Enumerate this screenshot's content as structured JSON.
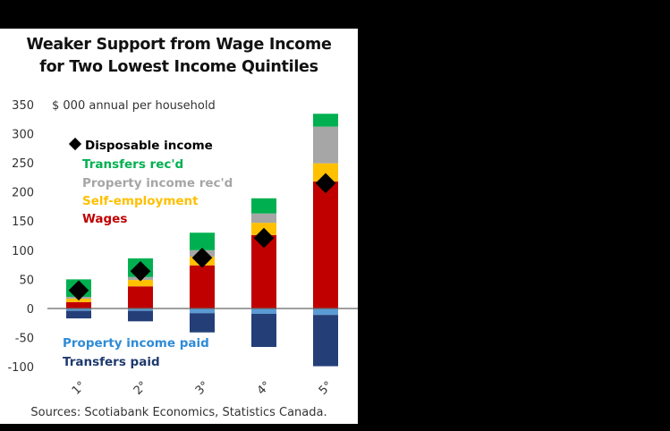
{
  "title_lines": [
    "Weaker Support from Wage Income",
    "for Two Lowest Income Quintiles"
  ],
  "unit_label": "$ 000 annual per household",
  "source": "Sources: Scotiabank Economics, Statistics Canada.",
  "colors": {
    "wages": "#c00000",
    "self_employment": "#ffc000",
    "property_income_recd": "#a6a6a6",
    "transfers_recd": "#00b050",
    "property_income_paid": "#5b9bd5",
    "transfers_paid": "#243f78",
    "disposable_income": "#000000"
  },
  "legend": {
    "disposable": "Disposable income",
    "transfers_recd": "Transfers rec'd",
    "property_recd": "Property income rec'd",
    "self_employment": "Self-employment",
    "wages": "Wages",
    "property_paid": "Property income paid",
    "transfers_paid": "Transfers paid"
  },
  "chart_data": {
    "type": "bar",
    "stacked": true,
    "title": "Weaker Support from Wage Income for Two Lowest Income Quintiles",
    "ylabel": "$ 000 annual per household",
    "xlabel": "",
    "categories": [
      "1°",
      "2°",
      "3°",
      "4°",
      "5°"
    ],
    "ylim": [
      -100,
      350
    ],
    "yticks": [
      350,
      300,
      250,
      200,
      150,
      100,
      50,
      0,
      -50,
      -100
    ],
    "grid": false,
    "legend_position": "inside upper-left",
    "series": [
      {
        "name": "Wages",
        "values": [
          11,
          38,
          74,
          126,
          218
        ]
      },
      {
        "name": "Self-employment",
        "values": [
          6,
          11,
          15,
          21,
          31
        ]
      },
      {
        "name": "Property income rec'd",
        "values": [
          3,
          5,
          11,
          16,
          63
        ]
      },
      {
        "name": "Transfers rec'd",
        "values": [
          30,
          32,
          30,
          26,
          22
        ]
      },
      {
        "name": "Property income paid",
        "values": [
          -4,
          -4,
          -8,
          -9,
          -11
        ]
      },
      {
        "name": "Transfers paid",
        "values": [
          -13,
          -18,
          -33,
          -57,
          -88
        ]
      },
      {
        "name": "Disposable income",
        "type": "marker",
        "values": [
          31,
          64,
          87,
          121,
          215
        ]
      }
    ]
  }
}
